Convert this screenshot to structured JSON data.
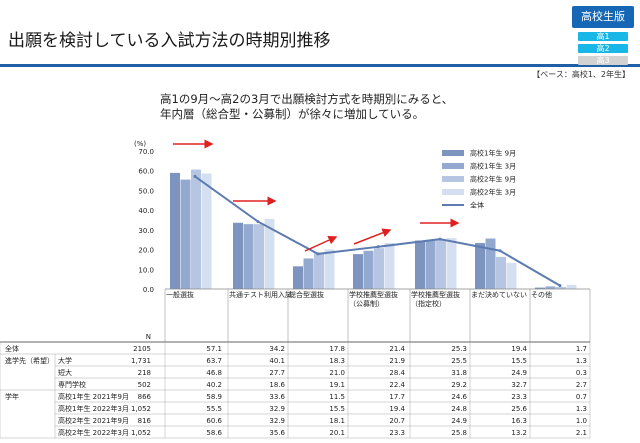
{
  "page": {
    "title": "出願を検討している入試方法の時期別推移",
    "badge": "高校生版",
    "grade_pills": [
      "高1",
      "高2",
      "高3"
    ],
    "base_note": "【ベース：高校1、2年生】",
    "subtitle_lines": [
      "高1の9月～高2の3月で出願検討方式を時期別にみると、",
      "年内層（総合型・公募制）が徐々に増加している。"
    ]
  },
  "chart_data": {
    "type": "bar",
    "y_unit": "(%)",
    "ylim": [
      0,
      70
    ],
    "yticks": [
      "0.0",
      "10.0",
      "20.0",
      "30.0",
      "40.0",
      "50.0",
      "60.0",
      "70.0"
    ],
    "categories": [
      "一般選抜",
      "共通テスト利用入試",
      "総合型選抜",
      "学校推薦型選抜（公募制）",
      "学校推薦型選抜（指定校）",
      "まだ決めていない",
      "その他"
    ],
    "category_lines": [
      [
        "一般選抜"
      ],
      [
        "共通テスト利用入試"
      ],
      [
        "総合型選抜"
      ],
      [
        "学校推薦型選抜",
        "（公募制）"
      ],
      [
        "学校推薦型選抜",
        "（指定校）"
      ],
      [
        "まだ決めていない"
      ],
      [
        "その他"
      ]
    ],
    "series": [
      {
        "name": "高校1年生 9月",
        "values": [
          58.9,
          33.6,
          11.5,
          17.7,
          24.6,
          23.3,
          0.7
        ],
        "color": "#7d95be"
      },
      {
        "name": "高校1年生 3月",
        "values": [
          55.5,
          32.9,
          15.5,
          19.4,
          24.8,
          25.6,
          1.3
        ],
        "color": "#93a9d0"
      },
      {
        "name": "高校2年生 9月",
        "values": [
          60.6,
          32.9,
          18.1,
          20.7,
          24.9,
          16.3,
          1.0
        ],
        "color": "#b6c6e2"
      },
      {
        "name": "高校2年生 3月",
        "values": [
          58.6,
          35.6,
          20.1,
          23.3,
          25.8,
          13.2,
          2.1
        ],
        "color": "#d4dff0"
      }
    ],
    "line": {
      "name": "全体",
      "values": [
        57.1,
        34.2,
        17.8,
        21.4,
        25.3,
        19.4,
        1.7
      ],
      "color": "#5d7bb0"
    },
    "arrow_color": "#e02020",
    "legend_position": "right"
  },
  "table": {
    "n_header": "N",
    "rows": [
      {
        "group": "全体",
        "sub": "",
        "n": "2105",
        "values": [
          "57.1",
          "34.2",
          "17.8",
          "21.4",
          "25.3",
          "19.4",
          "1.7"
        ]
      },
      {
        "group": "進学先（希望）",
        "sub": "大学",
        "n": "1,731",
        "values": [
          "63.7",
          "40.1",
          "18.3",
          "21.9",
          "25.5",
          "15.5",
          "1.3"
        ]
      },
      {
        "group": "",
        "sub": "短大",
        "n": "218",
        "values": [
          "46.8",
          "27.7",
          "21.0",
          "28.4",
          "31.8",
          "24.9",
          "0.3"
        ]
      },
      {
        "group": "",
        "sub": "専門学校",
        "n": "502",
        "values": [
          "40.2",
          "18.6",
          "19.1",
          "22.4",
          "29.2",
          "32.7",
          "2.7"
        ]
      },
      {
        "group": "学年",
        "sub": "高校1年生 2021年9月",
        "n": "866",
        "values": [
          "58.9",
          "33.6",
          "11.5",
          "17.7",
          "24.6",
          "23.3",
          "0.7"
        ]
      },
      {
        "group": "",
        "sub": "高校1年生 2022年3月",
        "n": "1,052",
        "values": [
          "55.5",
          "32.9",
          "15.5",
          "19.4",
          "24.8",
          "25.6",
          "1.3"
        ]
      },
      {
        "group": "",
        "sub": "高校2年生 2021年9月",
        "n": "816",
        "values": [
          "60.6",
          "32.9",
          "18.1",
          "20.7",
          "24.9",
          "16.3",
          "1.0"
        ]
      },
      {
        "group": "",
        "sub": "高校2年生 2022年3月",
        "n": "1,052",
        "values": [
          "58.6",
          "35.6",
          "20.1",
          "23.3",
          "25.8",
          "13.2",
          "2.1"
        ]
      }
    ]
  }
}
